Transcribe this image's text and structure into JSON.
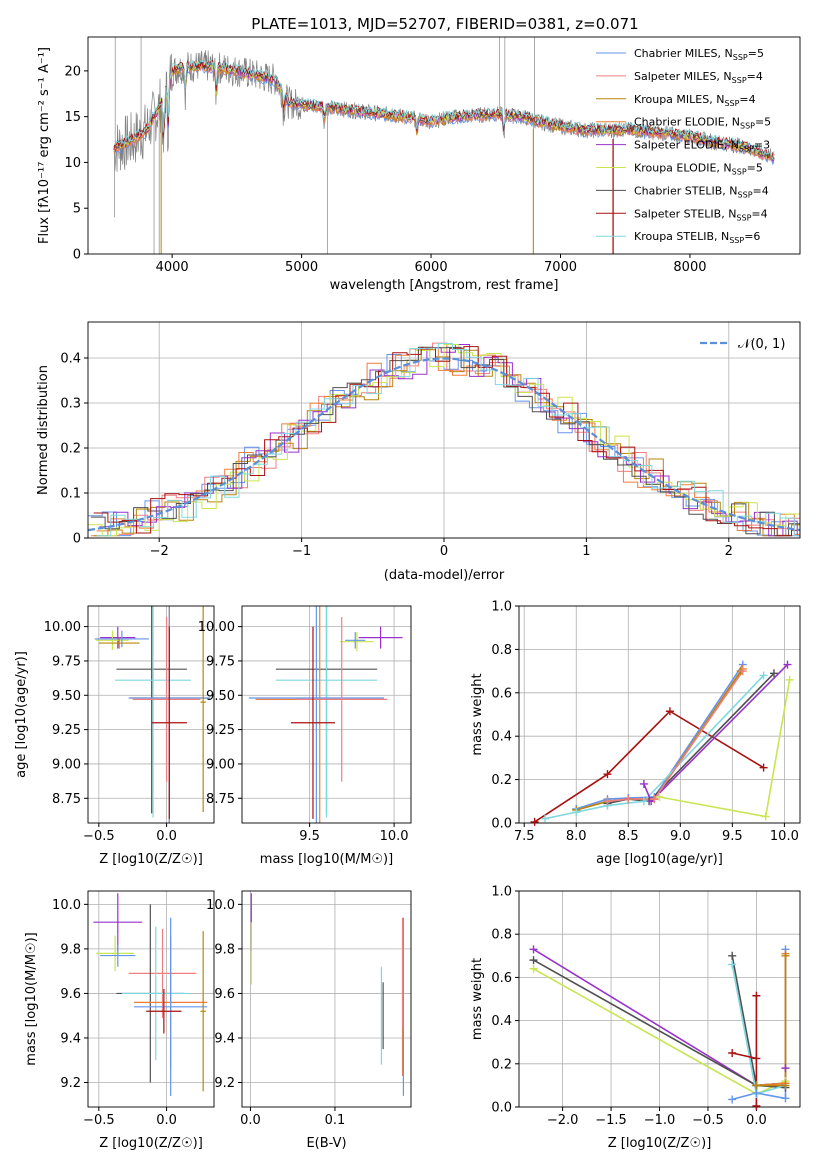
{
  "title": "PLATE=1013, MJD=52707, FIBERID=0381, z=0.071",
  "colors": {
    "Chabrier MILES": "#6495ed",
    "Salpeter MILES": "#f08080",
    "Kroupa MILES": "#b8860b",
    "Chabrier ELODIE": "#ee7e3a",
    "Salpeter ELODIE": "#9932cc",
    "Kroupa ELODIE": "#c8e650",
    "Chabrier STELIB": "#505050",
    "Salpeter STELIB": "#aa1010",
    "Kroupa STELIB": "#7fd8e0"
  },
  "legend": [
    {
      "name": "Chabrier MILES",
      "label": "Chabrier MILES, N",
      "n": "=5"
    },
    {
      "name": "Salpeter MILES",
      "label": "Salpeter MILES, N",
      "n": "=4"
    },
    {
      "name": "Kroupa MILES",
      "label": "Kroupa MILES, N",
      "n": "=4"
    },
    {
      "name": "Chabrier ELODIE",
      "label": "Chabrier ELODIE, N",
      "n": "=5"
    },
    {
      "name": "Salpeter ELODIE",
      "label": "Salpeter ELODIE, N",
      "n": "=3"
    },
    {
      "name": "Kroupa ELODIE",
      "label": "Kroupa ELODIE, N",
      "n": "=5"
    },
    {
      "name": "Chabrier STELIB",
      "label": "Chabrier STELIB, N",
      "n": "=4"
    },
    {
      "name": "Salpeter STELIB",
      "label": "Salpeter STELIB, N",
      "n": "=4"
    },
    {
      "name": "Kroupa STELIB",
      "label": "Kroupa STELIB, N",
      "n": "=6"
    }
  ],
  "chart_data": [
    {
      "type": "line",
      "name": "spectrum",
      "xlabel": "wavelength [Angstrom, rest frame]",
      "ylabel": "Flux [fλ10⁻¹⁷ erg cm⁻² s⁻¹ A⁻¹]",
      "xlim": [
        3350,
        8850
      ],
      "ylim": [
        0,
        23.7
      ],
      "xticks": [
        4000,
        5000,
        6000,
        7000,
        8000
      ],
      "yticks": [
        0,
        5,
        10,
        15,
        20
      ],
      "continuum_x": [
        3550,
        3700,
        3800,
        3900,
        4000,
        4100,
        4300,
        4500,
        4800,
        4900,
        5200,
        5500,
        5800,
        6000,
        6200,
        6500,
        6700,
        6900,
        7200,
        7500,
        7800,
        8000,
        8200,
        8400,
        8650
      ],
      "continuum_y": [
        11.5,
        12.5,
        13.5,
        16,
        20,
        20.5,
        20.5,
        20,
        19,
        16.5,
        16,
        15.5,
        15,
        14.5,
        15,
        15.3,
        15,
        14.2,
        13.5,
        13.6,
        13.2,
        12.8,
        12.2,
        11.8,
        10.5
      ]
    },
    {
      "type": "step",
      "name": "residuals",
      "xlabel": "(data-model)/error",
      "ylabel": "Normed distribution",
      "xlim": [
        -2.5,
        2.5
      ],
      "ylim": [
        0,
        0.48
      ],
      "xticks": [
        -2,
        -1,
        0,
        1,
        2
      ],
      "yticks": [
        0,
        0.1,
        0.2,
        0.3,
        0.4
      ],
      "legend": "𝒩(0, 1)"
    },
    {
      "type": "scatter",
      "name": "age-vs-Z",
      "xlabel": "Z [log10(Z/Z☉)]",
      "ylabel": "age  [log10(age/yr)]",
      "xlim": [
        -0.58,
        0.35
      ],
      "ylim": [
        8.57,
        10.15
      ],
      "xticks": [
        -0.5,
        0.0
      ],
      "yticks": [
        8.75,
        9.0,
        9.25,
        9.5,
        9.75,
        10.0
      ],
      "points": [
        {
          "c": "Salpeter ELODIE",
          "x": -0.36,
          "y": 9.92,
          "xe": 0.13,
          "ye": 0.08
        },
        {
          "c": "Kroupa ELODIE",
          "x": -0.4,
          "y": 9.9,
          "xe": 0.12,
          "ye": 0.07
        },
        {
          "c": "Chabrier MILES",
          "x": -0.33,
          "y": 9.91,
          "xe": 0.2,
          "ye": 0.06
        },
        {
          "c": "Kroupa MILES",
          "x": -0.35,
          "y": 9.88,
          "xe": 0.15,
          "ye": 0.04
        },
        {
          "c": "Chabrier STELIB",
          "x": -0.11,
          "y": 9.69,
          "xe": 0.26,
          "ye": 1.05
        },
        {
          "c": "Kroupa STELIB",
          "x": -0.1,
          "y": 9.61,
          "xe": 0.28,
          "ye": 1.0
        },
        {
          "c": "Chabrier ELODIE",
          "x": 0.02,
          "y": 9.48,
          "xe": 0.29,
          "ye": 1.05
        },
        {
          "c": "Chabrier MILES",
          "x": 0.02,
          "y": 9.48,
          "xe": 0.3,
          "ye": 1.0
        },
        {
          "c": "Salpeter MILES",
          "x": 0.0,
          "y": 9.47,
          "xe": 0.25,
          "ye": 0.6
        },
        {
          "c": "Salpeter STELIB",
          "x": 0.02,
          "y": 9.3,
          "xe": 0.13,
          "ye": 0.7
        },
        {
          "c": "Kroupa MILES",
          "x": 0.27,
          "y": 9.45,
          "xe": 0.02,
          "ye": 0.8
        }
      ]
    },
    {
      "type": "scatter",
      "name": "age-vs-mass",
      "xlabel": "mass [log10(M/M☉)]",
      "ylabel": "",
      "xlim": [
        9.1,
        10.1
      ],
      "ylim": [
        8.57,
        10.15
      ],
      "xticks": [
        9.5,
        10.0
      ],
      "yticks": [
        8.75,
        9.0,
        9.25,
        9.5,
        9.75,
        10.0
      ],
      "points": [
        {
          "c": "Salpeter ELODIE",
          "x": 9.92,
          "y": 9.92,
          "xe": 0.13,
          "ye": 0.08
        },
        {
          "c": "Kroupa ELODIE",
          "x": 9.78,
          "y": 9.89,
          "xe": 0.1,
          "ye": 0.07
        },
        {
          "c": "Chabrier MILES",
          "x": 9.77,
          "y": 9.9,
          "xe": 0.06,
          "ye": 0.06
        },
        {
          "c": "Chabrier STELIB",
          "x": 9.6,
          "y": 9.69,
          "xe": 0.3,
          "ye": 1.05
        },
        {
          "c": "Kroupa STELIB",
          "x": 9.6,
          "y": 9.61,
          "xe": 0.3,
          "ye": 1.0
        },
        {
          "c": "Chabrier ELODIE",
          "x": 9.56,
          "y": 9.47,
          "xe": 0.38,
          "ye": 1.0
        },
        {
          "c": "Chabrier MILES",
          "x": 9.54,
          "y": 9.48,
          "xe": 0.4,
          "ye": 0.95
        },
        {
          "c": "Salpeter MILES",
          "x": 9.69,
          "y": 9.47,
          "xe": 0.27,
          "ye": 0.6
        },
        {
          "c": "Salpeter STELIB",
          "x": 9.52,
          "y": 9.3,
          "xe": 0.13,
          "ye": 0.7
        }
      ]
    },
    {
      "type": "line",
      "name": "weight-vs-age",
      "xlabel": "age  [log10(age/yr)]",
      "ylabel": "mass weight",
      "xlim": [
        7.45,
        10.15
      ],
      "ylim": [
        0,
        1.0
      ],
      "xticks": [
        7.5,
        8.0,
        8.5,
        9.0,
        9.5,
        10.0
      ],
      "yticks": [
        0.0,
        0.2,
        0.4,
        0.6,
        0.8,
        1.0
      ],
      "series": [
        {
          "c": "Salpeter STELIB",
          "x": [
            7.6,
            8.3,
            8.9,
            9.8
          ],
          "y": [
            0.005,
            0.225,
            0.515,
            0.255
          ]
        },
        {
          "c": "Chabrier MILES",
          "x": [
            8.0,
            8.3,
            8.5,
            8.75,
            9.6
          ],
          "y": [
            0.065,
            0.11,
            0.115,
            0.12,
            0.73
          ]
        },
        {
          "c": "Chabrier ELODIE",
          "x": [
            8.0,
            8.3,
            8.5,
            8.75,
            9.6
          ],
          "y": [
            0.06,
            0.1,
            0.11,
            0.11,
            0.71
          ]
        },
        {
          "c": "Kroupa MILES",
          "x": [
            8.0,
            8.3,
            8.5,
            8.75,
            9.58
          ],
          "y": [
            0.06,
            0.1,
            0.11,
            0.11,
            0.7
          ]
        },
        {
          "c": "Chabrier STELIB",
          "x": [
            8.3,
            8.5,
            8.7,
            9.9
          ],
          "y": [
            0.09,
            0.11,
            0.1,
            0.69
          ]
        },
        {
          "c": "Kroupa STELIB",
          "x": [
            7.7,
            8.0,
            8.3,
            8.65,
            9.8
          ],
          "y": [
            0.02,
            0.05,
            0.08,
            0.1,
            0.68
          ]
        },
        {
          "c": "Salpeter ELODIE",
          "x": [
            8.65,
            8.72,
            10.03
          ],
          "y": [
            0.18,
            0.1,
            0.73
          ]
        },
        {
          "c": "Kroupa ELODIE",
          "x": [
            8.8,
            9.82,
            10.05
          ],
          "y": [
            0.12,
            0.03,
            0.66
          ]
        },
        {
          "c": "Salpeter MILES",
          "x": [
            8.3,
            8.5,
            8.75,
            9.6
          ],
          "y": [
            0.1,
            0.11,
            0.11,
            0.7
          ]
        }
      ]
    },
    {
      "type": "scatter",
      "name": "mass-vs-Z",
      "xlabel": "Z [log10(Z/Z☉)]",
      "ylabel": "mass [log10(M/M☉)]",
      "xlim": [
        -0.58,
        0.35
      ],
      "ylim": [
        9.09,
        10.06
      ],
      "xticks": [
        -0.5,
        0.0
      ],
      "yticks": [
        9.2,
        9.4,
        9.6,
        9.8,
        10.0
      ],
      "points": [
        {
          "c": "Salpeter ELODIE",
          "x": -0.36,
          "y": 9.92,
          "xe": 0.18,
          "ye": 0.13
        },
        {
          "c": "Kroupa ELODIE",
          "x": -0.38,
          "y": 9.78,
          "xe": 0.14,
          "ye": 0.08
        },
        {
          "c": "Chabrier MILES",
          "x": -0.36,
          "y": 9.77,
          "xe": 0.13,
          "ye": 0.05
        },
        {
          "c": "Salpeter MILES",
          "x": -0.03,
          "y": 9.69,
          "xe": 0.25,
          "ye": 0.2
        },
        {
          "c": "Chabrier STELIB",
          "x": -0.12,
          "y": 9.6,
          "xe": 0.25,
          "ye": 0.4
        },
        {
          "c": "Kroupa STELIB",
          "x": -0.08,
          "y": 9.6,
          "xe": 0.25,
          "ye": 0.3
        },
        {
          "c": "Chabrier ELODIE",
          "x": 0.03,
          "y": 9.56,
          "xe": 0.27,
          "ye": 0.3
        },
        {
          "c": "Chabrier MILES",
          "x": 0.03,
          "y": 9.54,
          "xe": 0.27,
          "ye": 0.4
        },
        {
          "c": "Salpeter STELIB",
          "x": -0.02,
          "y": 9.52,
          "xe": 0.13,
          "ye": 0.1
        },
        {
          "c": "Kroupa MILES",
          "x": 0.27,
          "y": 9.52,
          "xe": 0.02,
          "ye": 0.36
        }
      ]
    },
    {
      "type": "scatter",
      "name": "mass-vs-EBV",
      "xlabel": "E(B-V)",
      "ylabel": "",
      "xlim": [
        -0.01,
        0.19
      ],
      "ylim": [
        9.09,
        10.06
      ],
      "xticks": [
        0.0,
        0.1
      ],
      "yticks": [
        9.2,
        9.4,
        9.6,
        9.8,
        10.0
      ],
      "points": [
        {
          "c": "Salpeter ELODIE",
          "x": 0.001,
          "y": 9.92,
          "xe": 0.0,
          "ye": 0.13
        },
        {
          "c": "Kroupa ELODIE",
          "x": 0.001,
          "y": 9.78,
          "xe": 0.0,
          "ye": 0.14
        },
        {
          "c": "Chabrier STELIB",
          "x": 0.157,
          "y": 9.5,
          "xe": 0.0,
          "ye": 0.15
        },
        {
          "c": "Kroupa STELIB",
          "x": 0.155,
          "y": 9.5,
          "xe": 0.0,
          "ye": 0.22
        },
        {
          "c": "Chabrier ELODIE",
          "x": 0.18,
          "y": 9.56,
          "xe": 0.0,
          "ye": 0.33
        },
        {
          "c": "Chabrier MILES",
          "x": 0.181,
          "y": 9.54,
          "xe": 0.0,
          "ye": 0.4
        },
        {
          "c": "Salpeter MILES",
          "x": 0.18,
          "y": 9.69,
          "xe": 0.0,
          "ye": 0.25
        }
      ]
    },
    {
      "type": "line",
      "name": "weight-vs-Z",
      "xlabel": "Z [log10(Z/Z☉)]",
      "ylabel": "mass weight",
      "xlim": [
        -2.45,
        0.45
      ],
      "ylim": [
        0,
        1.0
      ],
      "xticks": [
        -2.0,
        -1.5,
        -1.0,
        -0.5,
        0.0
      ],
      "yticks": [
        0.0,
        0.2,
        0.4,
        0.6,
        0.8,
        1.0
      ],
      "series": [
        {
          "c": "Salpeter ELODIE",
          "x": [
            -2.3,
            0.0,
            0.3,
            0.3
          ],
          "y": [
            0.73,
            0.1,
            0.11,
            0.18
          ]
        },
        {
          "c": "Chabrier STELIB",
          "x": [
            -2.3,
            0.0,
            0.3
          ],
          "y": [
            0.68,
            0.1,
            0.11
          ]
        },
        {
          "c": "Kroupa ELODIE",
          "x": [
            -2.3,
            0.0,
            0.3
          ],
          "y": [
            0.64,
            0.06,
            0.12
          ]
        },
        {
          "c": "Chabrier STELIB",
          "x": [
            -0.25,
            0.0,
            0.3
          ],
          "y": [
            0.7,
            0.1,
            0.09
          ]
        },
        {
          "c": "Kroupa STELIB",
          "x": [
            -0.25,
            0.0,
            0.3
          ],
          "y": [
            0.66,
            0.06,
            0.1
          ]
        },
        {
          "c": "Salpeter STELIB",
          "x": [
            -0.25,
            0.0,
            0.0,
            0.0
          ],
          "y": [
            0.25,
            0.225,
            0.515,
            0.005
          ]
        },
        {
          "c": "Chabrier MILES",
          "x": [
            -0.25,
            0.0,
            0.3,
            0.3
          ],
          "y": [
            0.035,
            0.065,
            0.04,
            0.73
          ]
        },
        {
          "c": "Chabrier ELODIE",
          "x": [
            0.0,
            0.3,
            0.3
          ],
          "y": [
            0.1,
            0.11,
            0.71
          ]
        },
        {
          "c": "Kroupa MILES",
          "x": [
            0.0,
            0.3,
            0.3
          ],
          "y": [
            0.1,
            0.1,
            0.7
          ]
        }
      ]
    }
  ]
}
